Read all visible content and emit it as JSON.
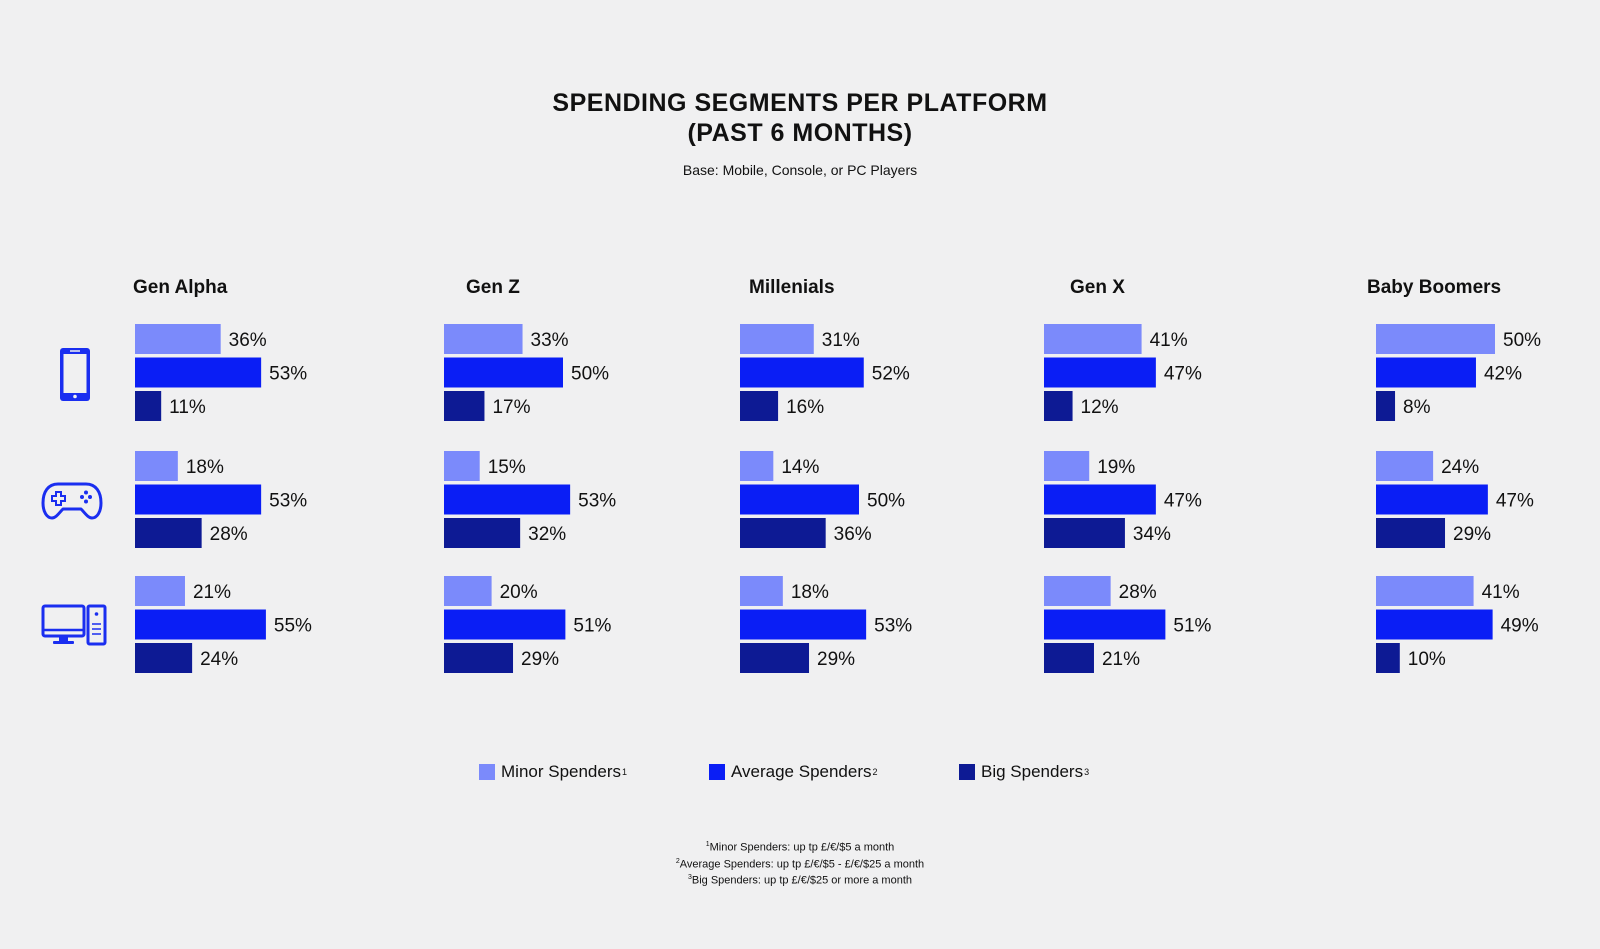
{
  "header": {
    "title_line1": "SPENDING SEGMENTS PER PLATFORM",
    "title_line2": "(PAST 6 MONTHS)",
    "subtitle": "Base: Mobile, Console, or PC Players"
  },
  "colors": {
    "minor": "#7b8afb",
    "average": "#0a1ef5",
    "big": "#0d1a94",
    "icon": "#1a2ef0"
  },
  "platform_icons": [
    "mobile-phone-icon",
    "game-controller-icon",
    "desktop-computer-icon"
  ],
  "legend": [
    {
      "label": "Minor Spenders",
      "sup": "1"
    },
    {
      "label": "Average Spenders",
      "sup": "2"
    },
    {
      "label": "Big Spenders",
      "sup": "3"
    }
  ],
  "footnotes": [
    {
      "sup": "1",
      "text": "Minor Spenders: up tp £/€/$5 a month"
    },
    {
      "sup": "2",
      "text": "Average Spenders: up tp £/€/$5 - £/€/$25 a month"
    },
    {
      "sup": "3",
      "text": "Big Spenders: up tp £/€/$25 or more a month"
    }
  ],
  "chart_data": {
    "type": "bar",
    "orientation": "horizontal",
    "panels": [
      "Gen Alpha",
      "Gen Z",
      "Millenials",
      "Gen X",
      "Baby Boomers"
    ],
    "platforms": [
      "Mobile",
      "Console",
      "PC"
    ],
    "series_names": [
      "Minor Spenders",
      "Average Spenders",
      "Big Spenders"
    ],
    "unit": "%",
    "values": {
      "Gen Alpha": [
        [
          36,
          53,
          11
        ],
        [
          18,
          53,
          28
        ],
        [
          21,
          55,
          24
        ]
      ],
      "Gen Z": [
        [
          33,
          50,
          17
        ],
        [
          15,
          53,
          32
        ],
        [
          20,
          51,
          29
        ]
      ],
      "Millenials": [
        [
          31,
          52,
          16
        ],
        [
          14,
          50,
          36
        ],
        [
          18,
          53,
          29
        ]
      ],
      "Gen X": [
        [
          41,
          47,
          12
        ],
        [
          19,
          47,
          34
        ],
        [
          28,
          51,
          21
        ]
      ],
      "Baby Boomers": [
        [
          50,
          42,
          8
        ],
        [
          24,
          47,
          29
        ],
        [
          41,
          49,
          10
        ]
      ]
    }
  }
}
